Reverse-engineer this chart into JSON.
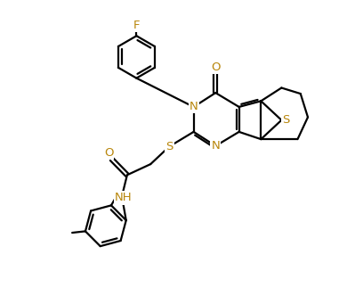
{
  "background_color": "#ffffff",
  "bond_color": "#000000",
  "heteroatom_color": "#b8860b",
  "line_width": 1.6,
  "font_size": 9.5,
  "figsize": [
    3.99,
    3.32
  ],
  "dpi": 100,
  "xlim": [
    0,
    10
  ],
  "ylim": [
    0,
    10
  ]
}
